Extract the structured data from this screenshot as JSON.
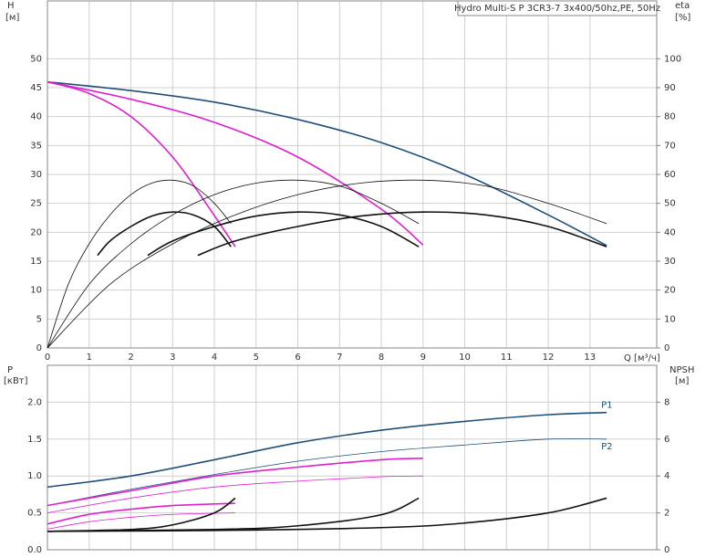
{
  "chart_data": [
    {
      "type": "line",
      "title": "Hydro Multi-S P 3CR3-7 3x400/50hz,PE, 50Hz",
      "y_label": "H",
      "y_unit": "[м]",
      "y2_label": "eta",
      "y2_unit": "[%]",
      "x_label": "Q [м³/ч]",
      "xlim": [
        0,
        14.6
      ],
      "xticks": [
        0,
        1,
        2,
        3,
        4,
        5,
        6,
        7,
        8,
        9,
        10,
        11,
        12,
        13
      ],
      "ylim": [
        0,
        60
      ],
      "yticks": [
        0,
        5,
        10,
        15,
        20,
        25,
        30,
        35,
        40,
        45,
        50
      ],
      "y2lim": [
        0,
        120
      ],
      "y2ticks": [
        0,
        10,
        20,
        30,
        40,
        50,
        60,
        70,
        80,
        90,
        100
      ],
      "grid": true,
      "series": [
        {
          "color": "#1f4e79",
          "style": "thick",
          "x": [
            0,
            2,
            4,
            6,
            8,
            10,
            12,
            13.4
          ],
          "values": [
            46,
            44.5,
            42.5,
            39.5,
            35.5,
            30,
            23,
            17.7
          ]
        },
        {
          "color": "#e020d0",
          "style": "thick",
          "x": [
            0,
            2,
            4,
            6,
            8,
            9
          ],
          "values": [
            46,
            43,
            39,
            33,
            24,
            17.8
          ]
        },
        {
          "color": "#e020d0",
          "style": "thick",
          "x": [
            0,
            1,
            2,
            3,
            3.8,
            4.5
          ],
          "values": [
            46,
            44,
            40,
            33,
            25,
            17.5
          ]
        },
        {
          "color": "#111111",
          "style": "thin",
          "axis": "y2",
          "x": [
            0,
            0.5,
            1,
            1.5,
            2,
            2.5,
            3,
            3.5,
            4,
            4.4
          ],
          "values": [
            0,
            22,
            36,
            46,
            53,
            57,
            58,
            56,
            50,
            43
          ]
        },
        {
          "color": "#111111",
          "style": "thin",
          "axis": "y2",
          "x": [
            0,
            1,
            2,
            3,
            4,
            5,
            6,
            7,
            8,
            8.9
          ],
          "values": [
            0,
            22,
            36,
            46,
            53,
            57,
            58,
            56,
            50,
            43
          ]
        },
        {
          "color": "#111111",
          "style": "thin",
          "axis": "y2",
          "x": [
            0,
            1.5,
            3,
            4.5,
            6,
            7.5,
            9,
            10.5,
            12,
            13.4
          ],
          "values": [
            0,
            22,
            36,
            46,
            53,
            57,
            58,
            56,
            50,
            43
          ]
        },
        {
          "color": "#111111",
          "style": "thick",
          "axis": "y2",
          "x": [
            1.2,
            1.5,
            2,
            2.5,
            3,
            3.5,
            4,
            4.4
          ],
          "values": [
            32,
            37,
            42,
            45.6,
            47,
            46,
            42,
            35
          ]
        },
        {
          "color": "#111111",
          "style": "thick",
          "axis": "y2",
          "x": [
            2.4,
            3,
            4,
            5,
            6,
            7,
            8,
            8.9
          ],
          "values": [
            32,
            37,
            42,
            45.6,
            47,
            46,
            42,
            35
          ]
        },
        {
          "color": "#111111",
          "style": "thick",
          "axis": "y2",
          "x": [
            3.6,
            4.5,
            6,
            7.5,
            9,
            10.5,
            12,
            13.4
          ],
          "values": [
            32,
            37,
            42,
            45.6,
            47,
            46,
            42,
            35
          ]
        }
      ]
    },
    {
      "type": "line",
      "y_label": "P",
      "y_unit": "[кВт]",
      "y2_label": "NPSH",
      "y2_unit": "[м]",
      "xlim": [
        0,
        14.6
      ],
      "ylim": [
        0,
        2.5
      ],
      "yticks": [
        {
          "value": 0,
          "label": "0.0"
        },
        0.5,
        {
          "value": 1,
          "label": "1.0"
        },
        1.5,
        {
          "value": 2,
          "label": "2.0"
        }
      ],
      "y2lim": [
        0,
        10
      ],
      "y2ticks": [
        0,
        2,
        4,
        6,
        8
      ],
      "grid": true,
      "series": [
        {
          "name": "P1",
          "color": "#1f4e79",
          "style": "thick",
          "x": [
            0,
            2,
            4,
            6,
            8,
            10,
            12,
            13.4
          ],
          "values": [
            0.85,
            1.0,
            1.22,
            1.45,
            1.62,
            1.74,
            1.83,
            1.86
          ]
        },
        {
          "name": "P2",
          "color": "#1f4e79",
          "style": "thin",
          "x": [
            0,
            2,
            4,
            6,
            8,
            10,
            12,
            13.4
          ],
          "values": [
            0.6,
            0.82,
            1.02,
            1.2,
            1.33,
            1.42,
            1.5,
            1.5
          ]
        },
        {
          "color": "#e020d0",
          "style": "thick",
          "x": [
            0,
            2,
            4,
            6,
            8,
            9
          ],
          "values": [
            0.6,
            0.8,
            1.0,
            1.12,
            1.22,
            1.24
          ]
        },
        {
          "color": "#e020d0",
          "style": "thin",
          "x": [
            0,
            2,
            4,
            6,
            8,
            9
          ],
          "values": [
            0.5,
            0.7,
            0.85,
            0.93,
            0.99,
            1.0
          ]
        },
        {
          "color": "#e020d0",
          "style": "thick",
          "x": [
            0,
            1,
            2,
            3,
            4.5
          ],
          "values": [
            0.35,
            0.48,
            0.55,
            0.6,
            0.63
          ]
        },
        {
          "color": "#e020d0",
          "style": "thin",
          "x": [
            0,
            1,
            2,
            3,
            4.5
          ],
          "values": [
            0.28,
            0.38,
            0.44,
            0.48,
            0.5
          ]
        },
        {
          "color": "#111111",
          "style": "thick",
          "axis": "y2",
          "x": [
            0,
            4,
            8,
            10,
            12,
            13.4
          ],
          "values": [
            1.0,
            1.05,
            1.2,
            1.45,
            2.0,
            2.8
          ]
        },
        {
          "color": "#111111",
          "style": "thick",
          "axis": "y2",
          "x": [
            0,
            4,
            6,
            8,
            8.9
          ],
          "values": [
            1.0,
            1.1,
            1.3,
            1.9,
            2.8
          ]
        },
        {
          "color": "#111111",
          "style": "thick",
          "axis": "y2",
          "x": [
            0,
            2,
            3,
            4,
            4.5
          ],
          "values": [
            1.0,
            1.1,
            1.35,
            2.0,
            2.8
          ]
        }
      ]
    }
  ]
}
